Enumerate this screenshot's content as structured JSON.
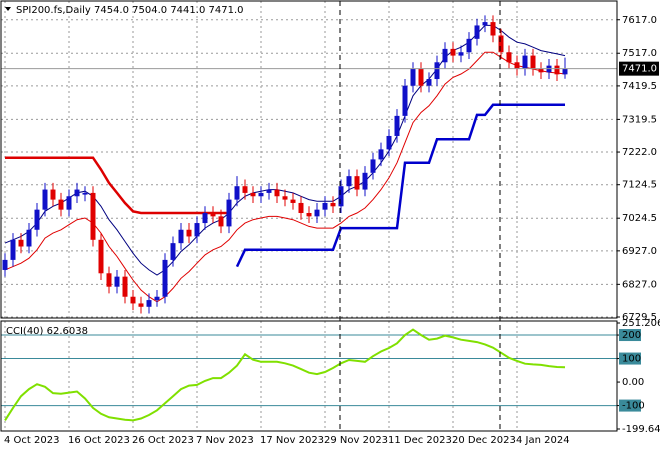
{
  "chart_data": [
    {
      "type": "candlestick",
      "title": "SPI200.fs,Daily  7454.0 7504.0 7441.0 7471.0",
      "categories": [
        "4 Oct 2023",
        null,
        null,
        null,
        null,
        null,
        null,
        null,
        "16 Oct 2023",
        null,
        null,
        null,
        null,
        null,
        null,
        null,
        "26 Oct 2023",
        null,
        null,
        null,
        null,
        null,
        null,
        null,
        "7 Nov 2023",
        null,
        null,
        null,
        null,
        null,
        null,
        null,
        "17 Nov 2023",
        null,
        null,
        null,
        null,
        null,
        null,
        null,
        "29 Nov 2023",
        null,
        null,
        null,
        null,
        null,
        null,
        null,
        "11 Dec 2023",
        null,
        null,
        null,
        null,
        null,
        null,
        null,
        "20 Dec 2023",
        null,
        null,
        null,
        null,
        null,
        null,
        null,
        "4 Jan 2024",
        null,
        null,
        null,
        null,
        null,
        null
      ],
      "open": [
        6870,
        6900,
        6960,
        6940,
        6990,
        7050,
        7110,
        7080,
        7050,
        7090,
        7095,
        7100,
        6960,
        6860,
        6820,
        6850,
        6790,
        6770,
        6760,
        6780,
        6790,
        6900,
        6950,
        6990,
        6970,
        7010,
        7040,
        7030,
        7000,
        7080,
        7120,
        7100,
        7090,
        7100,
        7110,
        7090,
        7080,
        7070,
        7040,
        7030,
        7050,
        7070,
        7060,
        7120,
        7150,
        7110,
        7160,
        7200,
        7230,
        7270,
        7330,
        7420,
        7470,
        7420,
        7440,
        7490,
        7530,
        7510,
        7520,
        7560,
        7600,
        7610,
        7570,
        7520,
        7490,
        7470,
        7510,
        7470,
        7460,
        7480,
        7454
      ],
      "high": [
        6920,
        6980,
        6980,
        7010,
        7070,
        7130,
        7130,
        7100,
        7110,
        7130,
        7120,
        7120,
        6980,
        6880,
        6870,
        6870,
        6810,
        6790,
        6800,
        6810,
        6920,
        6970,
        7010,
        7010,
        7030,
        7060,
        7060,
        7050,
        7100,
        7150,
        7140,
        7120,
        7120,
        7130,
        7130,
        7110,
        7100,
        7090,
        7060,
        7070,
        7090,
        7090,
        7140,
        7170,
        7170,
        7180,
        7220,
        7250,
        7290,
        7350,
        7440,
        7490,
        7490,
        7460,
        7510,
        7550,
        7550,
        7540,
        7580,
        7620,
        7630,
        7630,
        7590,
        7540,
        7510,
        7530,
        7530,
        7490,
        7500,
        7500,
        7504
      ],
      "low": [
        6850,
        6880,
        6920,
        6920,
        6970,
        7030,
        7060,
        7030,
        7030,
        7070,
        7075,
        6940,
        6840,
        6800,
        6800,
        6770,
        6750,
        6740,
        6740,
        6760,
        6770,
        6880,
        6930,
        6950,
        6950,
        6990,
        7010,
        6980,
        6980,
        7060,
        7080,
        7070,
        7070,
        7080,
        7070,
        7060,
        7050,
        7020,
        7010,
        7010,
        7030,
        7040,
        7040,
        7100,
        7090,
        7090,
        7140,
        7180,
        7210,
        7250,
        7310,
        7400,
        7400,
        7400,
        7420,
        7470,
        7490,
        7490,
        7500,
        7540,
        7580,
        7550,
        7500,
        7470,
        7450,
        7450,
        7450,
        7440,
        7440,
        7434,
        7441
      ],
      "close": [
        6900,
        6960,
        6940,
        6990,
        7050,
        7110,
        7080,
        7050,
        7090,
        7110,
        7100,
        6960,
        6860,
        6820,
        6850,
        6790,
        6770,
        6760,
        6780,
        6790,
        6900,
        6950,
        6990,
        6970,
        7010,
        7040,
        7030,
        7000,
        7080,
        7120,
        7100,
        7090,
        7100,
        7110,
        7090,
        7080,
        7070,
        7040,
        7030,
        7050,
        7070,
        7060,
        7120,
        7150,
        7110,
        7160,
        7200,
        7230,
        7270,
        7330,
        7420,
        7470,
        7420,
        7440,
        7490,
        7530,
        7510,
        7520,
        7560,
        7600,
        7610,
        7570,
        7520,
        7490,
        7470,
        7510,
        7470,
        7460,
        7480,
        7454,
        7471
      ],
      "up_color": "#1010c8",
      "down_color": "#e00000",
      "overlays": [
        {
          "color": "#000080",
          "width": 1,
          "values": [
            6950,
            6960,
            6970,
            6985,
            7010,
            7045,
            7060,
            7070,
            7085,
            7100,
            7105,
            7090,
            7060,
            7020,
            6990,
            6955,
            6920,
            6890,
            6870,
            6855,
            6870,
            6895,
            6925,
            6945,
            6970,
            6995,
            7010,
            7020,
            7040,
            7070,
            7090,
            7100,
            7105,
            7110,
            7110,
            7105,
            7100,
            7090,
            7080,
            7075,
            7075,
            7075,
            7090,
            7110,
            7120,
            7135,
            7160,
            7190,
            7225,
            7270,
            7330,
            7390,
            7420,
            7440,
            7470,
            7505,
            7525,
            7535,
            7550,
            7575,
            7600,
            7600,
            7585,
            7565,
            7550,
            7545,
            7535,
            7525,
            7520,
            7515,
            7510
          ]
        },
        {
          "color": "#e00000",
          "width": 1,
          "values": [
            6870,
            6880,
            6890,
            6905,
            6930,
            6965,
            6980,
            6990,
            7005,
            7020,
            7025,
            7010,
            6980,
            6940,
            6910,
            6875,
            6840,
            6810,
            6790,
            6775,
            6790,
            6815,
            6845,
            6865,
            6890,
            6915,
            6930,
            6940,
            6960,
            6990,
            7010,
            7020,
            7025,
            7030,
            7030,
            7025,
            7020,
            7010,
            7000,
            6995,
            6995,
            6995,
            7010,
            7030,
            7040,
            7055,
            7080,
            7110,
            7145,
            7190,
            7250,
            7310,
            7340,
            7360,
            7390,
            7425,
            7445,
            7455,
            7470,
            7495,
            7520,
            7520,
            7505,
            7490,
            7480,
            7475,
            7470,
            7465,
            7460,
            7458,
            7455
          ]
        },
        {
          "color": "#dd0000",
          "width": 2.5,
          "values": [
            7205,
            7205,
            7205,
            7205,
            7205,
            7205,
            7205,
            7205,
            7205,
            7205,
            7205,
            7205,
            7170,
            7130,
            7100,
            7070,
            7045,
            7040,
            7040,
            7040,
            7040,
            7040,
            7040,
            7040,
            7040,
            7040,
            7040,
            7040,
            7040,
            null,
            null,
            null,
            null,
            null,
            null,
            null,
            null,
            null,
            null,
            null,
            null,
            null,
            null,
            null,
            null,
            null,
            null,
            null,
            null,
            null,
            null,
            null,
            null,
            null,
            null,
            null,
            null,
            null,
            null,
            null,
            null,
            null,
            null,
            null,
            null,
            null,
            null,
            null,
            null,
            null,
            null
          ]
        },
        {
          "color": "#0000cc",
          "width": 2.5,
          "values": [
            null,
            null,
            null,
            null,
            null,
            null,
            null,
            null,
            null,
            null,
            null,
            null,
            null,
            null,
            null,
            null,
            null,
            null,
            null,
            null,
            null,
            null,
            null,
            null,
            null,
            null,
            null,
            null,
            null,
            6880,
            6930,
            6930,
            6930,
            6930,
            6930,
            6930,
            6930,
            6930,
            6930,
            6930,
            6930,
            6930,
            6995,
            6995,
            6995,
            6995,
            6995,
            6995,
            6995,
            6995,
            7190,
            7190,
            7190,
            7190,
            7260,
            7260,
            7260,
            7260,
            7260,
            7333,
            7333,
            7363,
            7363,
            7363,
            7363,
            7363,
            7363,
            7363,
            7363,
            7363,
            7363
          ]
        }
      ],
      "last_price": {
        "value": 7471,
        "label": "7471.0"
      },
      "ylim": [
        6729.5,
        7670
      ],
      "yticks": [
        {
          "value": 7617,
          "label": "7617.0"
        },
        {
          "value": 7517,
          "label": "7517.0"
        },
        {
          "value": 7419.5,
          "label": "7419.5"
        },
        {
          "value": 7319.5,
          "label": "7319.5"
        },
        {
          "value": 7222,
          "label": "7222.0"
        },
        {
          "value": 7124.5,
          "label": "7124.5"
        },
        {
          "value": 7024.5,
          "label": "7024.5"
        },
        {
          "value": 6927,
          "label": "6927.0"
        },
        {
          "value": 6827,
          "label": "6827.0"
        },
        {
          "value": 6729.5,
          "label": "6729.5"
        }
      ],
      "grid": true
    },
    {
      "type": "line",
      "title": "CCI(40) 62.6038",
      "color": "#80e000",
      "values": [
        -163,
        -110,
        -60,
        -30,
        -9,
        -20,
        -47,
        -50,
        -45,
        -40,
        -70,
        -110,
        -135,
        -150,
        -155,
        -160,
        -163,
        -155,
        -140,
        -120,
        -90,
        -60,
        -30,
        -15,
        -12,
        5,
        17,
        17,
        40,
        70,
        118,
        95,
        86,
        86,
        86,
        80,
        70,
        55,
        40,
        34,
        43,
        60,
        80,
        94,
        90,
        86,
        110,
        130,
        145,
        165,
        200,
        223,
        200,
        180,
        185,
        197,
        190,
        180,
        175,
        170,
        160,
        146,
        125,
        103,
        90,
        78,
        75,
        73,
        68,
        64,
        62.6038
      ],
      "ylim": [
        -199.648,
        251.206
      ],
      "yticks": [
        251.206,
        200,
        100,
        {
          "value": 0,
          "label": "0.00"
        },
        -100,
        -199.648
      ],
      "levels": [
        200,
        100,
        -100
      ],
      "level_color": "#3a8a9a"
    }
  ]
}
